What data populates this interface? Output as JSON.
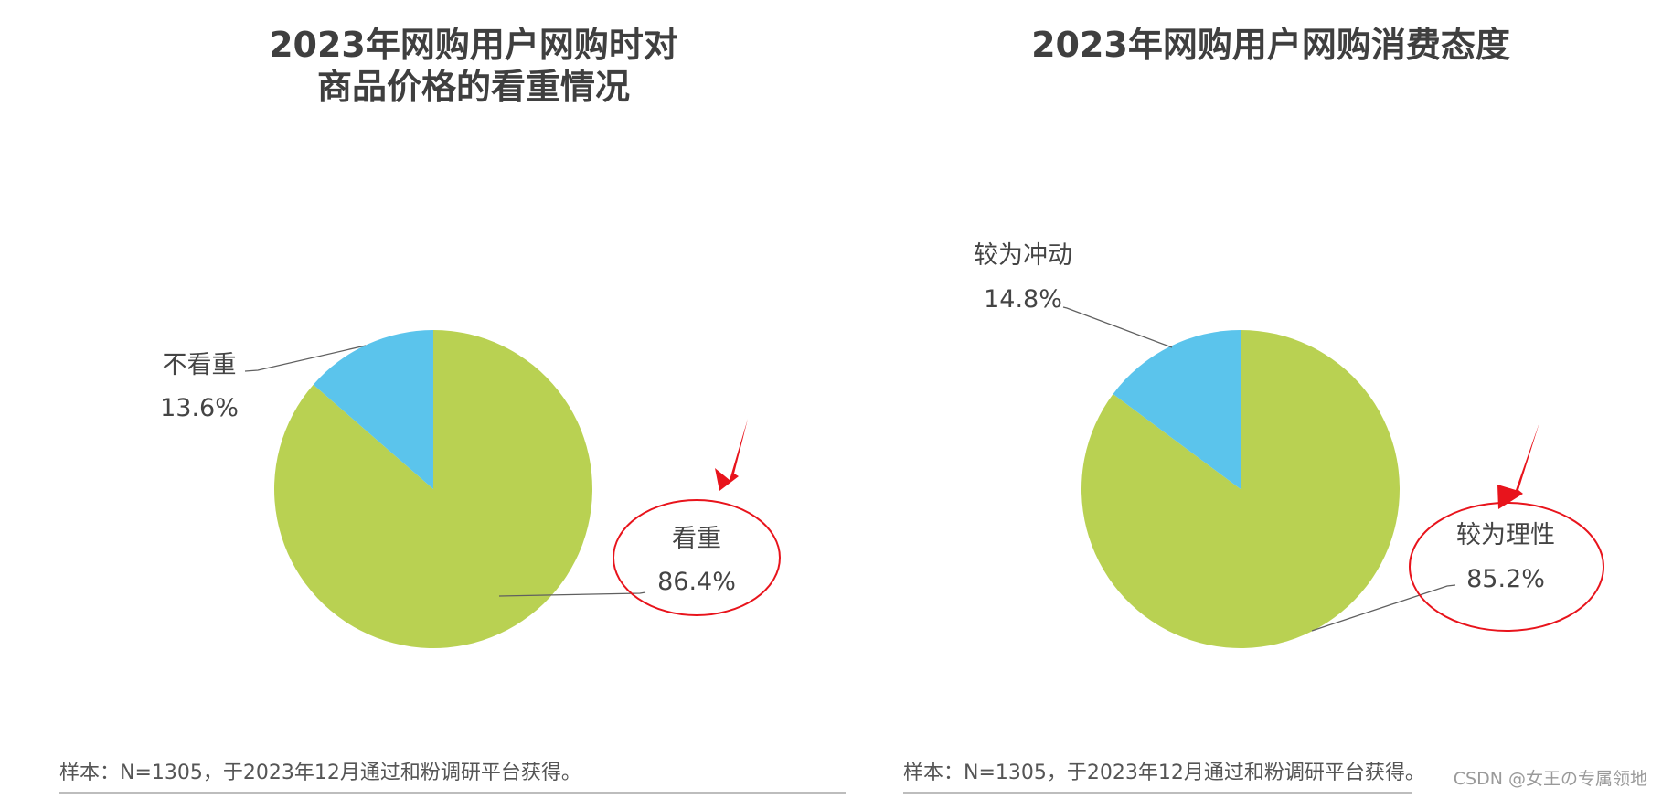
{
  "colors": {
    "green": "#b9d152",
    "blue": "#5bc4ec",
    "leader": "#606060",
    "highlight": "#e8141c",
    "rule": "#bdbdbd"
  },
  "chart_data": [
    {
      "type": "pie",
      "title_lines": [
        "2023年网购用户网购时对",
        "商品价格的看重情况"
      ],
      "slices": [
        {
          "label": "看重",
          "value": 86.4,
          "value_label": "86.4%",
          "color": "#b9d152",
          "highlighted": true
        },
        {
          "label": "不看重",
          "value": 13.6,
          "value_label": "13.6%",
          "color": "#5bc4ec",
          "highlighted": false
        }
      ],
      "start_angle_deg": 0,
      "direction": "clockwise",
      "legend": "none",
      "note": "样本：N=1305，于2023年12月通过和粉调研平台获得。"
    },
    {
      "type": "pie",
      "title_lines": [
        "2023年网购用户网购消费态度"
      ],
      "slices": [
        {
          "label": "较为理性",
          "value": 85.2,
          "value_label": "85.2%",
          "color": "#b9d152",
          "highlighted": true
        },
        {
          "label": "较为冲动",
          "value": 14.8,
          "value_label": "14.8%",
          "color": "#5bc4ec",
          "highlighted": false
        }
      ],
      "start_angle_deg": 0,
      "direction": "clockwise",
      "legend": "none",
      "note": "样本：N=1305，于2023年12月通过和粉调研平台获得。"
    }
  ],
  "watermark": "CSDN @女王の专属领地"
}
